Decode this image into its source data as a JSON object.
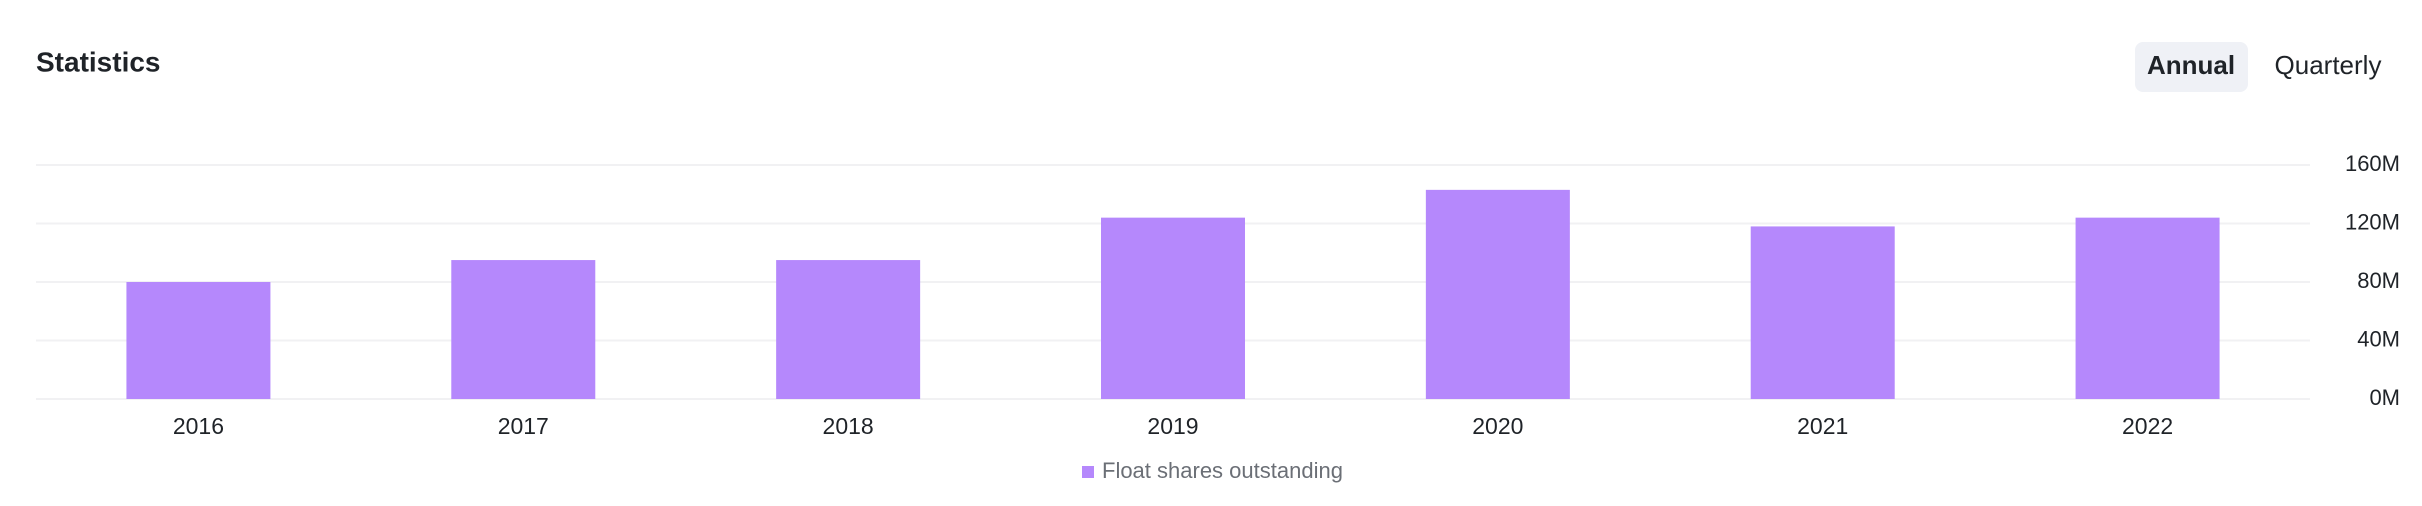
{
  "tabs": [
    "Annual",
    "Quarterly"
  ],
  "chart_data": {
    "type": "bar",
    "title": "Statistics",
    "categories": [
      "2016",
      "2017",
      "2018",
      "2019",
      "2020",
      "2021",
      "2022"
    ],
    "series": [
      {
        "name": "Float shares outstanding",
        "color": "#b588fc",
        "values": [
          80000000,
          95000000,
          95000000,
          124000000,
          143000000,
          118000000,
          124000000
        ]
      }
    ],
    "ylim": [
      0,
      160000000
    ],
    "yticks": [
      {
        "value": 0,
        "label": "0M"
      },
      {
        "value": 40000000,
        "label": "40M"
      },
      {
        "value": 80000000,
        "label": "80M"
      },
      {
        "value": 120000000,
        "label": "120M"
      },
      {
        "value": 160000000,
        "label": "160M"
      }
    ],
    "grid": true,
    "legend": "bottom"
  }
}
